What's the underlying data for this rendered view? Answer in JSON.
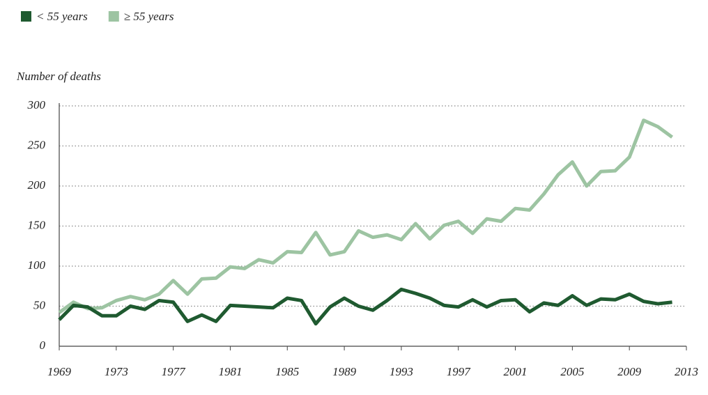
{
  "chart_data": {
    "type": "line",
    "y_label": "Number of deaths",
    "x": [
      1969,
      1970,
      1971,
      1972,
      1973,
      1974,
      1975,
      1976,
      1977,
      1978,
      1979,
      1980,
      1981,
      1982,
      1983,
      1984,
      1985,
      1986,
      1987,
      1988,
      1989,
      1990,
      1991,
      1992,
      1993,
      1994,
      1995,
      1996,
      1997,
      1998,
      1999,
      2000,
      2001,
      2002,
      2003,
      2004,
      2005,
      2006,
      2007,
      2008,
      2009,
      2010,
      2011,
      2012
    ],
    "series": [
      {
        "name": "< 55 years",
        "color": "#1f5a30",
        "values": [
          33,
          51,
          49,
          38,
          38,
          50,
          46,
          57,
          55,
          31,
          39,
          31,
          51,
          50,
          49,
          48,
          60,
          57,
          28,
          49,
          60,
          50,
          45,
          57,
          71,
          66,
          60,
          51,
          49,
          58,
          49,
          57,
          58,
          43,
          54,
          51,
          63,
          51,
          59,
          58,
          65,
          56,
          53,
          55
        ]
      },
      {
        "name": "≥ 55 years",
        "color": "#9dc4a2",
        "values": [
          42,
          55,
          47,
          48,
          57,
          62,
          58,
          65,
          82,
          65,
          84,
          85,
          99,
          97,
          108,
          104,
          118,
          117,
          142,
          114,
          118,
          144,
          136,
          139,
          133,
          153,
          134,
          151,
          156,
          141,
          159,
          156,
          172,
          170,
          190,
          214,
          230,
          200,
          218,
          219,
          236,
          282,
          274,
          261
        ]
      }
    ],
    "xlim": [
      1969,
      2013
    ],
    "xticks": [
      1969,
      1973,
      1977,
      1981,
      1985,
      1989,
      1993,
      1997,
      2001,
      2005,
      2009,
      2013
    ],
    "ylim": [
      0,
      300
    ],
    "yticks": [
      0,
      50,
      100,
      150,
      200,
      250,
      300
    ],
    "grid": true,
    "legend": "top-left"
  }
}
